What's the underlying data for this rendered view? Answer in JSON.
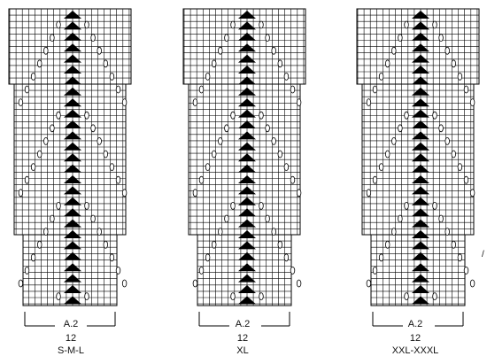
{
  "charts": [
    {
      "name": "A.2",
      "stitches": "12",
      "size": "S-M-L"
    },
    {
      "name": "A.2",
      "stitches": "12",
      "size": "XL"
    },
    {
      "name": "A.2",
      "stitches": "12",
      "size": "XXL-XXXL"
    }
  ],
  "symbols": {
    "grid_line": "#000000",
    "decrease_fill": "#000000",
    "yarn_over": "oval"
  },
  "stray_mark": "/"
}
